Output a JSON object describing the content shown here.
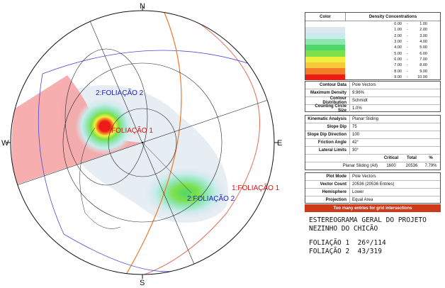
{
  "stereonet": {
    "labels": {
      "n": "N",
      "s": "S",
      "e": "E",
      "w": "W"
    },
    "set1_label": "FOLIAÇÃO 1",
    "set2_label": "2:FOLIAÇÃO 2",
    "plane1_label": "1:FOLIAÇÃO 1",
    "plane2_label": "2:FOLIAÇÃO 2",
    "colors": {
      "plane1": "#e2705a",
      "plane2": "#4a4ad8",
      "slope": "#ee7a28",
      "daylight": "#f4a0a0",
      "set1_text": "#e01010",
      "set2_text": "#2020c0"
    }
  },
  "legend": {
    "color_header": "Color",
    "density_header": "Density Concentrations",
    "ranges": [
      {
        "from": "0.00",
        "to": "1.00",
        "color": "#ffffff"
      },
      {
        "from": "1.00",
        "to": "2.00",
        "color": "#dce6ee"
      },
      {
        "from": "2.00",
        "to": "3.00",
        "color": "#c8ecec"
      },
      {
        "from": "3.00",
        "to": "4.00",
        "color": "#8ee6b0"
      },
      {
        "from": "4.00",
        "to": "5.00",
        "color": "#4ed86a"
      },
      {
        "from": "5.00",
        "to": "6.00",
        "color": "#7de04a"
      },
      {
        "from": "6.00",
        "to": "7.00",
        "color": "#f0f03c"
      },
      {
        "from": "7.00",
        "to": "8.00",
        "color": "#f6c83a"
      },
      {
        "from": "8.00",
        "to": "9.00",
        "color": "#f37c26"
      },
      {
        "from": "9.00",
        "to": "10.00",
        "color": "#ee1a14"
      }
    ]
  },
  "contour": [
    {
      "label": "Contour Data",
      "value": "Pole Vectors"
    },
    {
      "label": "Maximum Density",
      "value": "9.96%"
    },
    {
      "label": "Contour Distribution",
      "value": "Schmidt"
    },
    {
      "label": "Counting Circle Size",
      "value": "1.0%"
    }
  ],
  "kinematic": [
    {
      "label": "Kinematic Analysis",
      "value": "Planar Sliding"
    },
    {
      "label": "Slope Dip",
      "value": "75"
    },
    {
      "label": "Slope Dip Direction",
      "value": "100"
    },
    {
      "label": "Friction Angle",
      "value": "42°"
    },
    {
      "label": "Lateral Limits",
      "value": "30°"
    }
  ],
  "critical": {
    "headers": [
      "Critical",
      "Total",
      "%"
    ],
    "row_label": "Planar Sliding (All)",
    "values": [
      "1600",
      "20536",
      "7.79%"
    ]
  },
  "plot": [
    {
      "label": "Plot Mode",
      "value": "Pole Vectors"
    },
    {
      "label": "Vector Count",
      "value": "20536 (20536 Entries)"
    },
    {
      "label": "Hemisphere",
      "value": "Lower"
    },
    {
      "label": "Projection",
      "value": "Equal Area"
    }
  ],
  "warning": "Too many entries for grid intersections",
  "notes": {
    "line1": "ESTEREOGRAMA GERAL DO PROJETO",
    "line2": "NEZINHO DO CHICÃO",
    "line3": "FOLIAÇÃO 1  26º/114",
    "line4": "FOLIAÇÃO 2  43/319"
  }
}
